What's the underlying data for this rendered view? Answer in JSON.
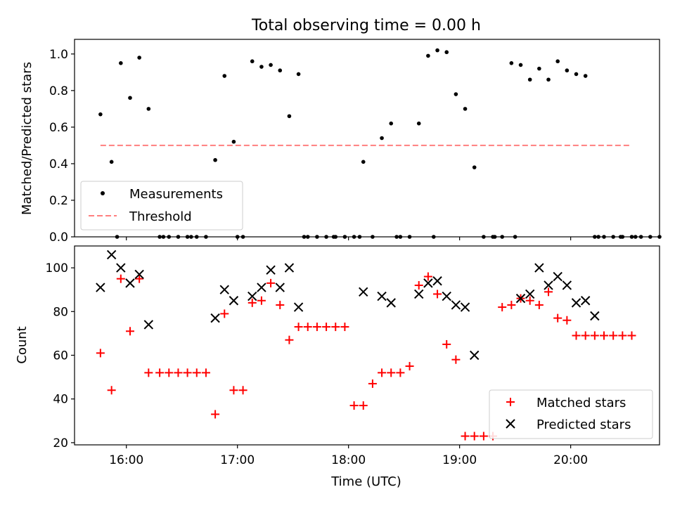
{
  "chart_data": [
    {
      "type": "scatter",
      "title": "Total observing time = 0.00 h",
      "xlabel": "",
      "ylabel": "Matched/Predicted stars",
      "xlim": [
        "15:32",
        "20:48"
      ],
      "ylim": [
        0,
        1.08
      ],
      "yticks": [
        "0.0",
        "0.2",
        "0.4",
        "0.6",
        "0.8",
        "1.0"
      ],
      "legend_position": "lower-left",
      "series": [
        {
          "name": "Measurements",
          "color": "#000000",
          "marker": "dot",
          "x": [
            "15:46",
            "15:52",
            "15:57",
            "16:02",
            "16:07",
            "16:12",
            "16:18",
            "16:23",
            "16:28",
            "16:33",
            "16:38",
            "16:43",
            "16:48",
            "16:53",
            "16:58",
            "17:03",
            "17:08",
            "17:13",
            "17:18",
            "17:23",
            "17:28",
            "17:33",
            "17:38",
            "17:43",
            "17:48",
            "17:53",
            "17:58",
            "18:03",
            "18:08",
            "18:13",
            "18:18",
            "18:23",
            "18:28",
            "18:33",
            "18:38",
            "18:43",
            "18:48",
            "18:53",
            "18:58",
            "19:03",
            "19:08",
            "19:13",
            "19:18",
            "19:23",
            "19:28",
            "19:33",
            "19:38",
            "19:43",
            "19:48",
            "19:53",
            "19:58",
            "20:03",
            "20:08",
            "20:13",
            "20:18",
            "20:23",
            "20:28",
            "20:33",
            "20:38",
            "20:43",
            "20:48",
            "15:55",
            "16:20",
            "16:35",
            "17:00",
            "17:36",
            "17:52",
            "18:06",
            "18:26",
            "18:46",
            "19:19",
            "19:30",
            "20:15",
            "20:27",
            "20:35"
          ],
          "y": [
            0.67,
            0.41,
            0.95,
            0.76,
            0.98,
            0.7,
            0.0,
            0.0,
            0.0,
            0.0,
            0.0,
            0.0,
            0.42,
            0.88,
            0.52,
            0.0,
            0.96,
            0.93,
            0.94,
            0.91,
            0.66,
            0.89,
            0.0,
            0.0,
            0.0,
            0.0,
            0.0,
            0.0,
            0.41,
            0.0,
            0.54,
            0.62,
            0.0,
            0.0,
            0.62,
            0.99,
            1.02,
            1.01,
            0.78,
            0.7,
            0.38,
            0.0,
            0.0,
            0.0,
            0.95,
            0.94,
            0.86,
            0.92,
            0.86,
            0.96,
            0.91,
            0.89,
            0.88,
            0.0,
            0.0,
            0.0,
            0.0,
            0.0,
            0.0,
            0.0,
            0.0,
            0.0,
            0.0,
            0.0,
            0.0,
            0.0,
            0.0,
            0.0,
            0.0,
            0.0,
            0.0,
            0.0,
            0.0,
            0.0,
            0.0
          ]
        },
        {
          "name": "Threshold",
          "color": "#ff7f7f",
          "style": "dashed",
          "x": [
            "15:46",
            "20:33"
          ],
          "y": [
            0.5,
            0.5
          ]
        }
      ]
    },
    {
      "type": "scatter",
      "title": "",
      "xlabel": "Time (UTC)",
      "ylabel": "Count",
      "xlim": [
        "15:32",
        "20:48"
      ],
      "ylim": [
        19,
        110
      ],
      "xticks": [
        "16:00",
        "17:00",
        "18:00",
        "19:00",
        "20:00"
      ],
      "yticks": [
        "20",
        "40",
        "60",
        "80",
        "100"
      ],
      "legend_position": "lower-right",
      "series": [
        {
          "name": "Matched stars",
          "color": "#ff0000",
          "marker": "plus",
          "x": [
            "15:46",
            "15:52",
            "15:57",
            "16:02",
            "16:07",
            "16:12",
            "16:18",
            "16:23",
            "16:28",
            "16:33",
            "16:38",
            "16:43",
            "16:48",
            "16:53",
            "16:58",
            "17:03",
            "17:08",
            "17:13",
            "17:18",
            "17:23",
            "17:28",
            "17:33",
            "17:38",
            "17:43",
            "17:48",
            "17:53",
            "17:58",
            "18:03",
            "18:08",
            "18:13",
            "18:18",
            "18:23",
            "18:28",
            "18:33",
            "18:38",
            "18:43",
            "18:48",
            "18:53",
            "18:58",
            "19:03",
            "19:08",
            "19:13",
            "19:18",
            "19:23",
            "19:28",
            "19:33",
            "19:38",
            "19:43",
            "19:48",
            "19:53",
            "19:58",
            "20:03",
            "20:08",
            "20:13",
            "20:18",
            "20:23",
            "20:28",
            "20:33"
          ],
          "y": [
            61,
            44,
            95,
            71,
            95,
            52,
            52,
            52,
            52,
            52,
            52,
            52,
            33,
            79,
            44,
            44,
            84,
            85,
            93,
            83,
            67,
            73,
            73,
            73,
            73,
            73,
            73,
            37,
            37,
            47,
            52,
            52,
            52,
            55,
            92,
            96,
            88,
            65,
            58,
            23,
            23,
            23,
            23,
            82,
            83,
            86,
            85,
            83,
            89,
            77,
            76,
            69,
            69,
            69,
            69,
            69,
            69,
            69
          ]
        },
        {
          "name": "Predicted stars",
          "color": "#000000",
          "marker": "x",
          "x": [
            "15:46",
            "15:52",
            "15:57",
            "16:02",
            "16:07",
            "16:12",
            "16:48",
            "16:53",
            "16:58",
            "17:08",
            "17:13",
            "17:18",
            "17:23",
            "17:28",
            "17:33",
            "18:08",
            "18:18",
            "18:23",
            "18:38",
            "18:43",
            "18:48",
            "18:53",
            "18:58",
            "19:03",
            "19:08",
            "19:33",
            "19:38",
            "19:43",
            "19:48",
            "19:53",
            "19:58",
            "20:03",
            "20:08",
            "20:13"
          ],
          "y": [
            91,
            106,
            100,
            93,
            97,
            74,
            77,
            90,
            85,
            87,
            91,
            99,
            91,
            100,
            82,
            89,
            87,
            84,
            88,
            93,
            94,
            87,
            83,
            82,
            60,
            86,
            88,
            100,
            92,
            96,
            92,
            84,
            85,
            78
          ]
        }
      ]
    }
  ]
}
